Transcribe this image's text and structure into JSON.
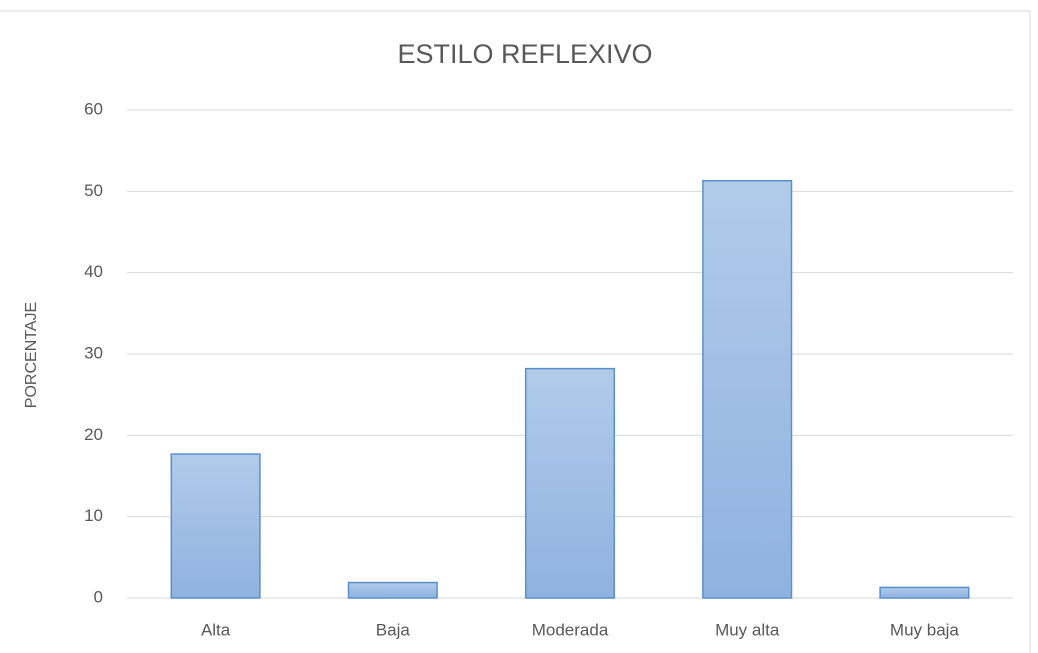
{
  "chart_data": {
    "type": "bar",
    "title": "ESTILO REFLEXIVO",
    "y_label": "PORCENTAJE",
    "categories": [
      "Alta",
      "Baja",
      "Moderada",
      "Muy alta",
      "Muy baja"
    ],
    "values": [
      17.7,
      1.9,
      28.2,
      51.3,
      1.3
    ],
    "color": "#5b8fc9",
    "ylim": [
      0,
      60
    ],
    "yticks": [
      0,
      10,
      20,
      30,
      40,
      50,
      60
    ],
    "grid": true
  }
}
